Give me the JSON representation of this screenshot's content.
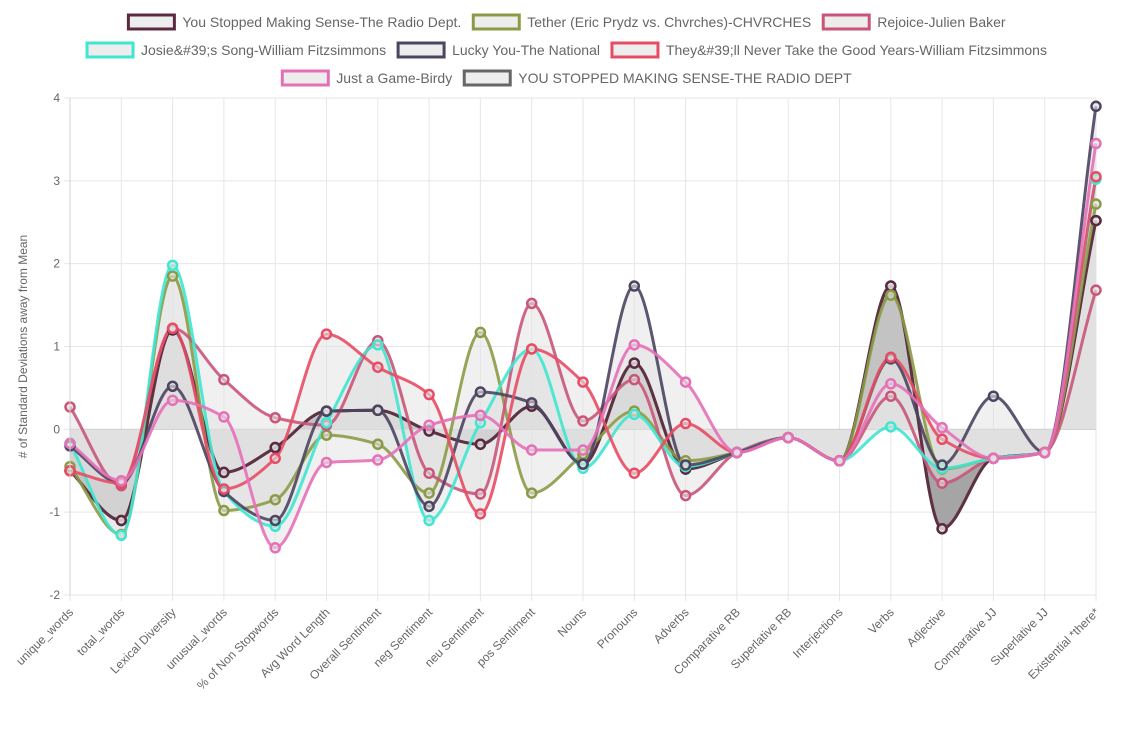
{
  "chart_data": {
    "type": "line",
    "title": "",
    "xlabel": "",
    "ylabel": "# of Standard Deviations away from Mean",
    "ylim": [
      -2,
      4
    ],
    "yticks": [
      -2,
      -1,
      0,
      1,
      2,
      3,
      4
    ],
    "grid": true,
    "legend_position": "top",
    "categories": [
      "unique_words",
      "total_words",
      "Lexical Diversity",
      "unusual_words",
      "% of Non Stopwords",
      "Avg Word Length",
      "Overall Sentiment",
      "neg Sentiment",
      "neu Sentiment",
      "pos Sentiment",
      "Nouns",
      "Pronouns",
      "Adverbs",
      "Comparative RB",
      "Superlative RB",
      "Interjections",
      "Verbs",
      "Adjective",
      "Comparative JJ",
      "Superlative JJ",
      "Existential *there*"
    ],
    "series": [
      {
        "name": "You Stopped Making Sense-The Radio Dept.",
        "color": "#5c2a40",
        "fill": "rgba(225,225,225,0.5)",
        "values": [
          -0.5,
          -1.1,
          1.2,
          -0.52,
          -0.22,
          0.22,
          0.23,
          -0.02,
          -0.18,
          0.28,
          -0.42,
          0.8,
          -0.48,
          -0.28,
          -0.1,
          -0.38,
          1.73,
          -1.2,
          -0.35,
          -0.28,
          2.52
        ]
      },
      {
        "name": "Tether (Eric Prydz vs. Chvrches)-CHVRCHES",
        "color": "#8b9b45",
        "fill": "rgba(225,225,225,0.5)",
        "values": [
          -0.45,
          -1.27,
          1.85,
          -0.98,
          -0.85,
          -0.07,
          -0.18,
          -0.77,
          1.17,
          -0.77,
          -0.3,
          0.22,
          -0.38,
          -0.28,
          -0.1,
          -0.38,
          1.62,
          -0.48,
          -0.35,
          -0.28,
          2.72
        ]
      },
      {
        "name": "Rejoice-Julien Baker",
        "color": "#c95579",
        "fill": "rgba(225,225,225,0.5)",
        "values": [
          0.27,
          -0.68,
          1.22,
          0.6,
          0.14,
          0.05,
          1.07,
          -0.53,
          -0.78,
          1.52,
          0.1,
          0.6,
          -0.8,
          -0.28,
          -0.1,
          -0.38,
          0.4,
          -0.65,
          -0.35,
          -0.28,
          1.68
        ]
      },
      {
        "name": "Josie&#39;s Song-William Fitzsimmons",
        "color": "#3fe6d2",
        "fill": "rgba(225,225,225,0.5)",
        "values": [
          -0.17,
          -1.28,
          1.98,
          -0.75,
          -1.17,
          0.08,
          1.02,
          -1.1,
          0.08,
          0.97,
          -0.47,
          0.18,
          -0.45,
          -0.28,
          -0.1,
          -0.38,
          0.03,
          -0.47,
          -0.35,
          -0.28,
          3.02
        ]
      },
      {
        "name": "Lucky You-The National",
        "color": "#4d4460",
        "fill": "rgba(225,225,225,0.5)",
        "values": [
          -0.2,
          -0.65,
          0.52,
          -0.75,
          -1.1,
          0.22,
          0.23,
          -0.93,
          0.45,
          0.32,
          -0.42,
          1.73,
          -0.43,
          -0.28,
          -0.1,
          -0.38,
          0.85,
          -0.43,
          0.4,
          -0.28,
          3.9
        ]
      },
      {
        "name": "They&#39;ll Never Take the Good Years-William Fitzsimmons",
        "color": "#e84c65",
        "fill": "rgba(225,225,225,0.5)",
        "values": [
          -0.5,
          -0.65,
          1.22,
          -0.72,
          -0.35,
          1.15,
          0.75,
          0.42,
          -1.02,
          0.97,
          0.57,
          -0.53,
          0.07,
          -0.28,
          -0.1,
          -0.38,
          0.87,
          -0.12,
          -0.35,
          -0.28,
          3.05
        ]
      },
      {
        "name": "Just a Game-Birdy",
        "color": "#e570b8",
        "fill": "rgba(225,225,225,0.5)",
        "values": [
          -0.17,
          -0.62,
          0.35,
          0.15,
          -1.43,
          -0.4,
          -0.37,
          0.05,
          0.17,
          -0.25,
          -0.25,
          1.02,
          0.57,
          -0.28,
          -0.1,
          -0.38,
          0.55,
          0.02,
          -0.35,
          -0.28,
          3.45
        ]
      },
      {
        "name": "YOU STOPPED MAKING SENSE-THE RADIO DEPT",
        "color": "#666666",
        "fill": "rgba(105,105,105,1)",
        "values": [
          -0.5,
          -1.1,
          1.2,
          -0.52,
          -0.22,
          0.22,
          0.23,
          -0.02,
          -0.18,
          0.28,
          -0.42,
          0.8,
          -0.48,
          -0.28,
          -0.1,
          -0.38,
          1.73,
          -1.2,
          -0.35,
          -0.28,
          2.52
        ]
      }
    ]
  }
}
